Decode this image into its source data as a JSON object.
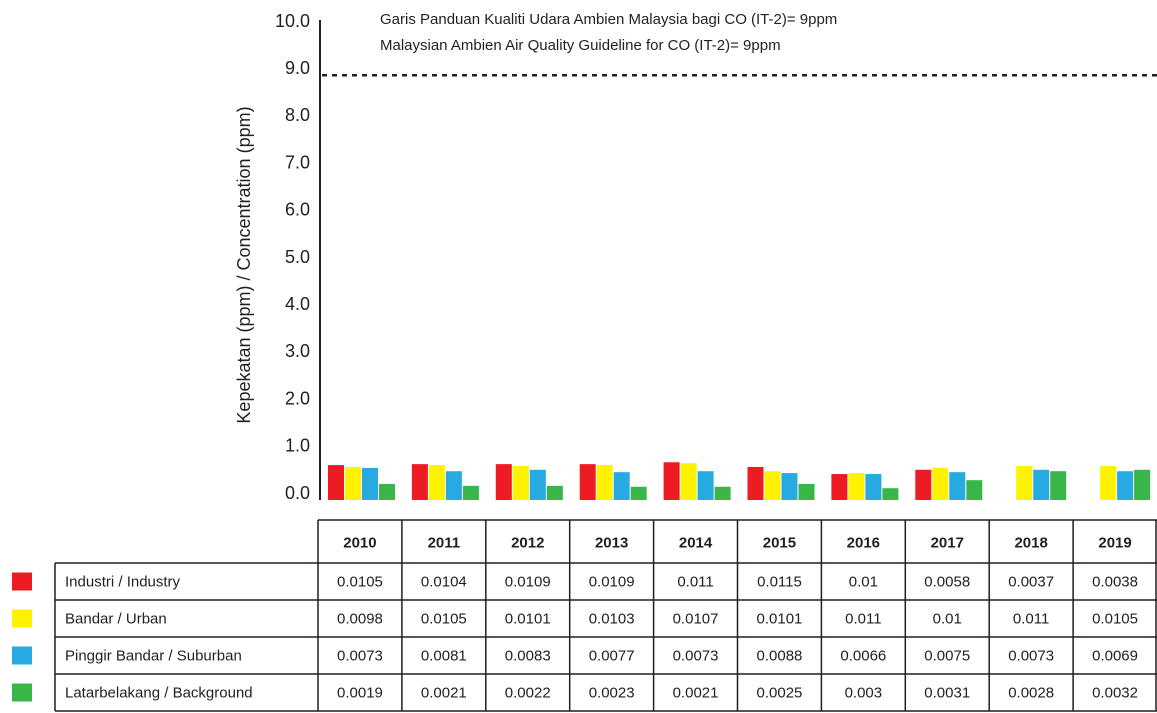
{
  "chart_data": {
    "type": "bar",
    "y_label": "Kepekatan (ppm) / Concentration (ppm)",
    "categories": [
      "2010",
      "2011",
      "2012",
      "2013",
      "2014",
      "2015",
      "2016",
      "2017",
      "2018",
      "2019"
    ],
    "series": [
      {
        "name": "Industri / Industry",
        "color": "#ed1c24",
        "values": [
          0.74,
          0.76,
          0.76,
          0.76,
          0.8,
          0.7,
          0.55,
          0.64,
          null,
          null
        ],
        "table_values": [
          0.0105,
          0.0104,
          0.0109,
          0.0109,
          0.011,
          0.0115,
          0.01,
          0.0058,
          0.0037,
          0.0038
        ]
      },
      {
        "name": "Bandar / Urban",
        "color": "#fff200",
        "values": [
          0.7,
          0.74,
          0.72,
          0.74,
          0.78,
          0.61,
          0.57,
          0.68,
          0.72,
          0.72
        ],
        "table_values": [
          0.0098,
          0.0105,
          0.0101,
          0.0103,
          0.0107,
          0.0101,
          0.011,
          0.01,
          0.011,
          0.0105
        ]
      },
      {
        "name": "Pinggir Bandar / Suburban",
        "color": "#27aae1",
        "values": [
          0.68,
          0.61,
          0.64,
          0.59,
          0.61,
          0.57,
          0.55,
          0.59,
          0.64,
          0.61
        ],
        "table_values": [
          0.0073,
          0.0081,
          0.0083,
          0.0077,
          0.0073,
          0.0088,
          0.0066,
          0.0075,
          0.0073,
          0.0069
        ]
      },
      {
        "name": "Latarbelakang / Background",
        "color": "#39b54a",
        "values": [
          0.34,
          0.3,
          0.3,
          0.28,
          0.28,
          0.34,
          0.25,
          0.42,
          0.61,
          0.64
        ],
        "table_values": [
          0.0019,
          0.0021,
          0.0022,
          0.0023,
          0.0021,
          0.0025,
          0.003,
          0.0031,
          0.0028,
          0.0032
        ]
      }
    ],
    "ylim": [
      0,
      10
    ],
    "yticks": [
      {
        "value": 0,
        "label": "0.0"
      },
      {
        "value": 1,
        "label": "1.0"
      },
      {
        "value": 2,
        "label": "2.0"
      },
      {
        "value": 3,
        "label": "3.0"
      },
      {
        "value": 4,
        "label": "4.0"
      },
      {
        "value": 5,
        "label": "5.0"
      },
      {
        "value": 6,
        "label": "6.0"
      },
      {
        "value": 7,
        "label": "7.0"
      },
      {
        "value": 8,
        "label": "8.0"
      },
      {
        "value": 9,
        "label": "9.0"
      },
      {
        "value": 10,
        "label": "10.0"
      }
    ],
    "guideline": {
      "value": 9,
      "labels": [
        "Garis Panduan Kualiti Udara Ambien Malaysia bagi CO (IT-2)= 9ppm",
        "Malaysian Ambien Air Quality Guideline for CO (IT-2)= 9ppm"
      ]
    }
  }
}
